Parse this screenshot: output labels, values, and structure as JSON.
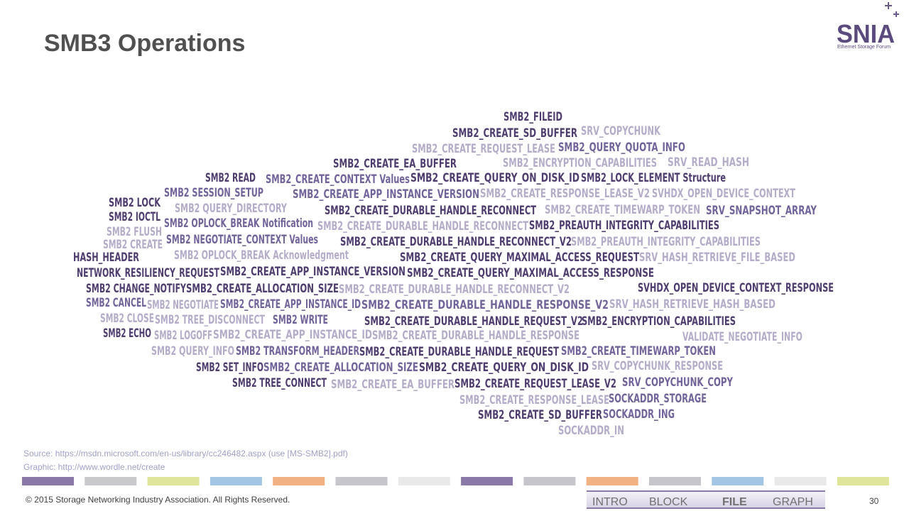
{
  "header": {
    "title": "SMB3 Operations",
    "logo": "SNIA",
    "logo_subtitle": "Ethernet Storage Forum"
  },
  "word_cloud": [
    "SMB2_FILEID",
    "SMB2_CREATE_SD_BUFFER",
    "SRV_COPYCHUNK",
    "SMB2_CREATE_REQUEST_LEASE",
    "SMB2_QUERY_QUOTA_INFO",
    "SMB2_CREATE_EA_BUFFER",
    "SMB2_ENCRYPTION_CAPABILITIES",
    "SRV_READ_HASH",
    "SMB2 READ",
    "SMB2_CREATE_CONTEXT Values",
    "SMB2_CREATE_QUERY_ON_DISK_ID",
    "SMB2_LOCK_ELEMENT Structure",
    "SMB2 SESSION_SETUP",
    "SMB2_CREATE_APP_INSTANCE_VERSION",
    "SMB2_CREATE_RESPONSE_LEASE_V2",
    "SVHDX_OPEN_DEVICE_CONTEXT",
    "SMB2 LOCK",
    "SMB2 QUERY_DIRECTORY",
    "SMB2_CREATE_DURABLE_HANDLE_RECONNECT",
    "SMB2_CREATE_TIMEWARP_TOKEN",
    "SRV_SNAPSHOT_ARRAY",
    "SMB2 IOCTL",
    "SMB2 OPLOCK_BREAK Notification",
    "SMB2_CREATE_DURABLE_HANDLE_RECONNECT",
    "SMB2_PREAUTH_INTEGRITY_CAPABILITIES",
    "SMB2 FLUSH",
    "SMB2 NEGOTIATE_CONTEXT Values",
    "SMB2_CREATE_DURABLE_HANDLE_RECONNECT_V2",
    "SMB2_PREAUTH_INTEGRITY_CAPABILITIES",
    "SMB2 CREATE",
    "SMB2 OPLOCK_BREAK Acknowledgment",
    "SMB2_CREATE_QUERY_MAXIMAL_ACCESS_REQUEST",
    "SRV_HASH_RETRIEVE_FILE_BASED",
    "HASH_HEADER",
    "NETWORK_RESILIENCY_REQUEST",
    "SMB2_CREATE_APP_INSTANCE_VERSION",
    "SMB2_CREATE_QUERY_MAXIMAL_ACCESS_RESPONSE",
    "SMB2 CHANGE_NOTIFY",
    "SMB2_CREATE_ALLOCATION_SIZE",
    "SMB2_CREATE_DURABLE_HANDLE_RECONNECT_V2",
    "SVHDX_OPEN_DEVICE_CONTEXT_RESPONSE",
    "SMB2 CANCEL",
    "SMB2 NEGOTIATE",
    "SMB2_CREATE_APP_INSTANCE_ID",
    "SMB2_CREATE_DURABLE_HANDLE_RESPONSE_V2",
    "SRV_HASH_RETRIEVE_HASH_BASED",
    "SMB2 CLOSE",
    "SMB2 TREE_DISCONNECT",
    "SMB2 WRITE",
    "SMB2_CREATE_DURABLE_HANDLE_REQUEST_V2",
    "SMB2_ENCRYPTION_CAPABILITIES",
    "SMB2 ECHO",
    "SMB2 LOGOFF",
    "SMB2_CREATE_APP_INSTANCE_ID",
    "SMB2_CREATE_DURABLE_HANDLE_RESPONSE",
    "VALIDATE_NEGOTIATE_INFO",
    "SMB2 QUERY_INFO",
    "SMB2 TRANSFORM_HEADER",
    "SMB2_CREATE_DURABLE_HANDLE_REQUEST",
    "SMB2_CREATE_TIMEWARP_TOKEN",
    "SMB2 SET_INFO",
    "SMB2_CREATE_ALLOCATION_SIZE",
    "SMB2_CREATE_QUERY_ON_DISK_ID",
    "SRV_COPYCHUNK_RESPONSE",
    "SMB2 TREE_CONNECT",
    "SMB2_CREATE_EA_BUFFER",
    "SMB2_CREATE_REQUEST_LEASE_V2",
    "SRV_COPYCHUNK_COPY",
    "SMB2_CREATE_RESPONSE_LEASE",
    "SOCKADDR_STORAGE",
    "SMB2_CREATE_SD_BUFFER",
    "SOCKADDR_ING",
    "SOCKADDR_IN"
  ],
  "source": {
    "source_line": "Source:  https://msdn.microsoft.com/en-us/library/cc246482.aspx (use [MS-SMB2].pdf)",
    "graphic_line": "Graphic: http://www.wordle.net/create"
  },
  "footer": {
    "copyright": "© 2015 Storage Networking Industry Association. All Rights Reserved.",
    "page_number": "30",
    "nav": [
      "INTRO",
      "BLOCK",
      "FILE",
      "GRAPH"
    ]
  }
}
